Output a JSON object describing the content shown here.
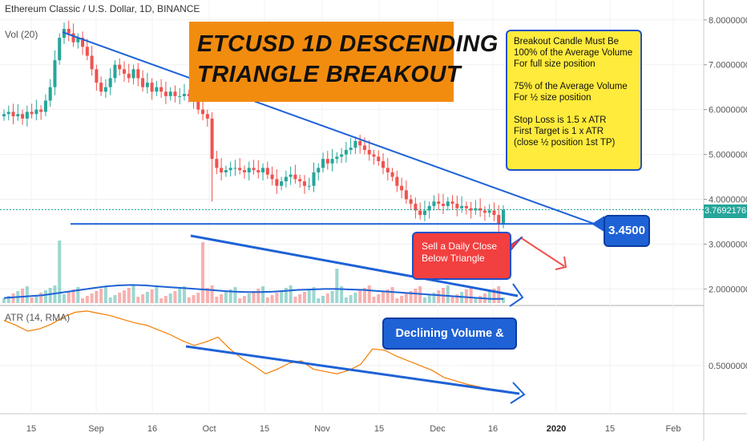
{
  "header": {
    "symbol_title": "Ethereum Classic / U.S. Dollar, 1D, BINANCE",
    "volume_indicator": "Vol (20)",
    "atr_indicator": "ATR (14, RMA)"
  },
  "annotations": {
    "title_line1": "ETCUSD 1D DESCENDING",
    "title_line2": "TRIANGLE BREAKOUT",
    "note_lines": [
      "Breakout Candle Must Be",
      "100% of the Average Volume",
      "For full size position",
      "",
      "75% of the Average Volume",
      "For ½ size position",
      "",
      "Stop Loss is 1.5 x ATR",
      "First Target is 1 x ATR",
      "(close ½ position 1st TP)"
    ],
    "sell_line1": "Sell a Daily Close",
    "sell_line2": "Below Triangle",
    "support_callout": "3.4500",
    "declining_label": "Declining Volume & ATR"
  },
  "price_axis": {
    "ticks": [
      "8.0000000",
      "7.0000000",
      "6.0000000",
      "5.0000000",
      "4.0000000",
      "3.0000000",
      "2.0000000"
    ],
    "current_price": "3.7692176"
  },
  "atr_axis": {
    "ticks": [
      "0.5000000"
    ]
  },
  "time_axis": {
    "labels": [
      "15",
      "Sep",
      "16",
      "Oct",
      "15",
      "Nov",
      "15",
      "Dec",
      "16",
      "2020",
      "15",
      "Feb"
    ]
  },
  "colors": {
    "up": "#26a69a",
    "down": "#ef5350",
    "annotation_blue": "#1e62d6",
    "atr_line": "#f57c00",
    "title_bg": "#f28c0f",
    "note_bg": "#ffeb3b",
    "sell_bg": "#f23f3f"
  },
  "chart_data": {
    "type": "candlestick",
    "ylim": [
      1.65,
      8.3
    ],
    "support_level": 3.45,
    "current_price": 3.7692176,
    "closes": [
      5.9,
      5.95,
      5.85,
      5.9,
      5.8,
      5.95,
      5.9,
      6.0,
      5.95,
      6.2,
      6.5,
      7.1,
      7.6,
      7.8,
      7.7,
      7.5,
      7.6,
      7.4,
      7.2,
      6.9,
      6.6,
      6.4,
      6.5,
      6.7,
      7.0,
      6.9,
      6.8,
      6.7,
      6.9,
      6.7,
      6.5,
      6.6,
      6.4,
      6.5,
      6.4,
      6.3,
      6.4,
      6.3,
      6.3,
      6.35,
      6.3,
      6.2,
      6.0,
      5.9,
      5.8,
      4.9,
      4.7,
      4.6,
      4.65,
      4.7,
      4.7,
      4.65,
      4.6,
      4.7,
      4.65,
      4.6,
      4.7,
      4.55,
      4.45,
      4.3,
      4.4,
      4.5,
      4.55,
      4.45,
      4.4,
      4.3,
      4.3,
      4.6,
      4.7,
      4.9,
      4.8,
      4.9,
      4.95,
      5.0,
      5.1,
      5.15,
      5.3,
      5.2,
      5.1,
      5.0,
      4.95,
      4.85,
      4.7,
      4.6,
      4.5,
      4.3,
      4.2,
      4.0,
      3.9,
      3.75,
      3.65,
      3.75,
      3.85,
      3.95,
      3.9,
      3.85,
      3.95,
      3.9,
      3.8,
      3.85,
      3.8,
      3.75,
      3.8,
      3.75,
      3.7,
      3.75,
      3.65,
      3.45,
      3.7692
    ],
    "volume_avg": [
      1.8,
      1.82,
      1.84,
      1.86,
      1.9,
      1.94,
      1.98,
      2.02,
      2.06,
      2.08,
      2.09,
      2.08,
      2.06,
      2.04,
      2.02,
      2.0,
      1.98,
      1.96,
      1.94,
      1.93,
      1.93,
      1.94,
      1.96,
      1.98,
      1.99,
      2.0,
      2.0,
      1.99,
      1.98,
      1.96,
      1.94,
      1.92,
      1.9,
      1.88,
      1.86,
      1.84,
      1.82,
      1.8,
      1.78,
      1.78
    ],
    "atr": [
      0.88,
      0.84,
      0.79,
      0.81,
      0.85,
      0.91,
      0.95,
      0.96,
      0.94,
      0.92,
      0.89,
      0.86,
      0.84,
      0.8,
      0.76,
      0.71,
      0.67,
      0.7,
      0.74,
      0.64,
      0.56,
      0.5,
      0.43,
      0.47,
      0.52,
      0.54,
      0.47,
      0.45,
      0.43,
      0.46,
      0.51,
      0.64,
      0.63,
      0.58,
      0.54,
      0.5,
      0.46,
      0.4,
      0.37,
      0.34,
      0.32,
      0.29,
      0.29
    ]
  }
}
